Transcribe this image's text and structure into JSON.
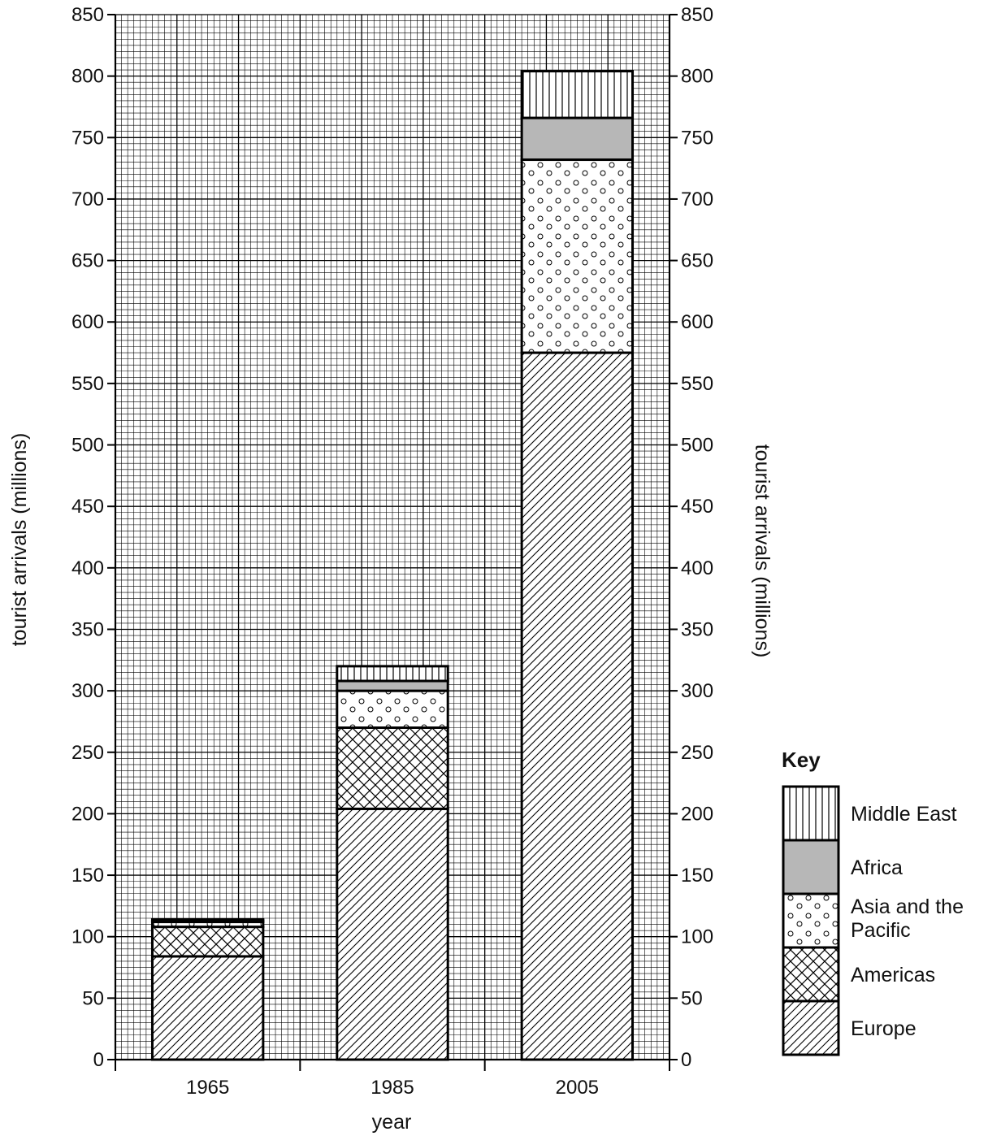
{
  "chart_data": {
    "type": "bar",
    "stacked": true,
    "categories": [
      "1965",
      "1985",
      "2005"
    ],
    "series": [
      {
        "name": "Europe",
        "values": [
          84,
          204,
          575
        ]
      },
      {
        "name": "Americas",
        "values": [
          24,
          66,
          0
        ]
      },
      {
        "name": "Asia and the Pacific",
        "values": [
          4,
          30,
          157
        ]
      },
      {
        "name": "Africa",
        "values": [
          1,
          8,
          34
        ]
      },
      {
        "name": "Middle East",
        "values": [
          1,
          12,
          38
        ]
      }
    ],
    "series_patterns": [
      "diagonal-hatch",
      "cross-hatch",
      "circles",
      "grey-fill",
      "vertical-lines"
    ],
    "xlabel": "year",
    "ylabel": "tourist arrivals (millions)",
    "ylabel_right": "tourist arrivals (millions)",
    "ylim": [
      0,
      850
    ],
    "yticks": [
      0,
      50,
      100,
      150,
      200,
      250,
      300,
      350,
      400,
      450,
      500,
      550,
      600,
      650,
      700,
      750,
      800,
      850
    ],
    "grid": true,
    "legend": {
      "title": "Key",
      "placement": "right",
      "entries": [
        "Middle East",
        "Africa",
        "Asia and the Pacific",
        "Americas",
        "Europe"
      ]
    }
  }
}
